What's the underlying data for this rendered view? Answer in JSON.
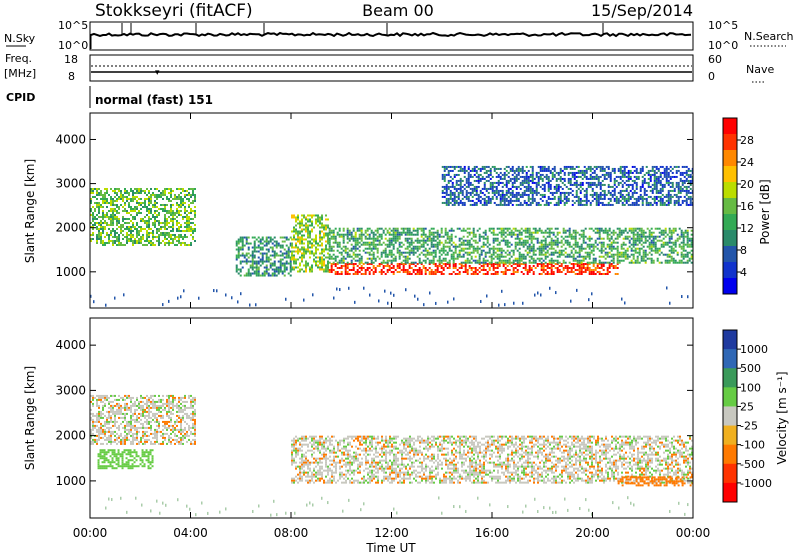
{
  "header": {
    "station": "Stokkseyri (fitACF)",
    "beam": "Beam 00",
    "date": "15/Sep/2014"
  },
  "noise_panel": {
    "left_label": "N.Sky",
    "right_label": "N.Search",
    "tick_top": "10^5",
    "tick_bottom": "10^0"
  },
  "freq_panel": {
    "label_line1": "Freq.",
    "label_line2": "[MHz]",
    "left_ticks": [
      "18",
      "8"
    ],
    "right_ticks": [
      "60",
      "0"
    ],
    "right_label": "Nave"
  },
  "cpid": {
    "label": "CPID",
    "program": "normal (fast)",
    "id": "151"
  },
  "panels": {
    "y_label": "Slant Range [km]",
    "y_ticks": [
      "4000",
      "3000",
      "2000",
      "1000"
    ],
    "x_ticks": [
      "00:00",
      "04:00",
      "08:00",
      "12:00",
      "16:00",
      "20:00",
      "00:00"
    ],
    "x_label": "Time UT"
  },
  "power_bar": {
    "label": "Power [dB]",
    "ticks": [
      "28",
      "24",
      "20",
      "16",
      "12",
      "8",
      "4"
    ],
    "colors": [
      "#ff0000",
      "#ff3300",
      "#ff8800",
      "#ffc000",
      "#bbdd00",
      "#66bb44",
      "#33aa55",
      "#2a8a6a",
      "#2255aa",
      "#1133cc",
      "#0000ee"
    ]
  },
  "velocity_bar": {
    "label": "Velocity [m s⁻¹]",
    "ticks": [
      "1000",
      "500",
      "100",
      "25",
      "-25",
      "-100",
      "-500",
      "-1000"
    ],
    "colors": [
      "#1f3a9f",
      "#2f67b5",
      "#3a9a5a",
      "#66cc44",
      "#c8c8c0",
      "#f0b020",
      "#ff7a00",
      "#ff3300",
      "#ff0000"
    ]
  },
  "chart_data": [
    {
      "type": "heatmap",
      "title": "Power [dB]",
      "xlabel": "Time UT",
      "ylabel": "Slant Range [km]",
      "xlim": [
        "00:00",
        "24:00"
      ],
      "ylim": [
        180,
        4600
      ],
      "zlim": [
        0,
        30
      ],
      "echo_bands": [
        {
          "t_start": 0.0,
          "t_end": 4.2,
          "range_km_start": 1600,
          "range_km_end": 2900,
          "power_db": 14
        },
        {
          "t_start": 5.8,
          "t_end": 8.0,
          "range_km_start": 900,
          "range_km_end": 1800,
          "power_db": 10
        },
        {
          "t_start": 8.0,
          "t_end": 9.5,
          "range_km_start": 1000,
          "range_km_end": 2300,
          "power_db": 16
        },
        {
          "t_start": 9.5,
          "t_end": 21.0,
          "range_km_start": 950,
          "range_km_end": 1200,
          "power_db": 28
        },
        {
          "t_start": 9.5,
          "t_end": 24.0,
          "range_km_start": 1200,
          "range_km_end": 2000,
          "power_db": 12
        },
        {
          "t_start": 14.0,
          "t_end": 24.0,
          "range_km_start": 2500,
          "range_km_end": 3400,
          "power_db": 6
        }
      ]
    },
    {
      "type": "heatmap",
      "title": "Velocity [m s⁻¹]",
      "xlabel": "Time UT",
      "ylabel": "Slant Range [km]",
      "xlim": [
        "00:00",
        "24:00"
      ],
      "ylim": [
        180,
        4600
      ],
      "zlim": [
        -1000,
        1000
      ],
      "echo_bands": [
        {
          "t_start": 0.0,
          "t_end": 4.2,
          "range_km_start": 1800,
          "range_km_end": 2900,
          "velocity_ms": 0
        },
        {
          "t_start": 8.0,
          "t_end": 24.0,
          "range_km_start": 950,
          "range_km_end": 2000,
          "velocity_ms": 0
        },
        {
          "t_start": 0.3,
          "t_end": 2.5,
          "range_km_start": 1300,
          "range_km_end": 1700,
          "velocity_ms": 200
        },
        {
          "t_start": 21.0,
          "t_end": 24.0,
          "range_km_start": 900,
          "range_km_end": 1100,
          "velocity_ms": -400
        }
      ]
    }
  ]
}
